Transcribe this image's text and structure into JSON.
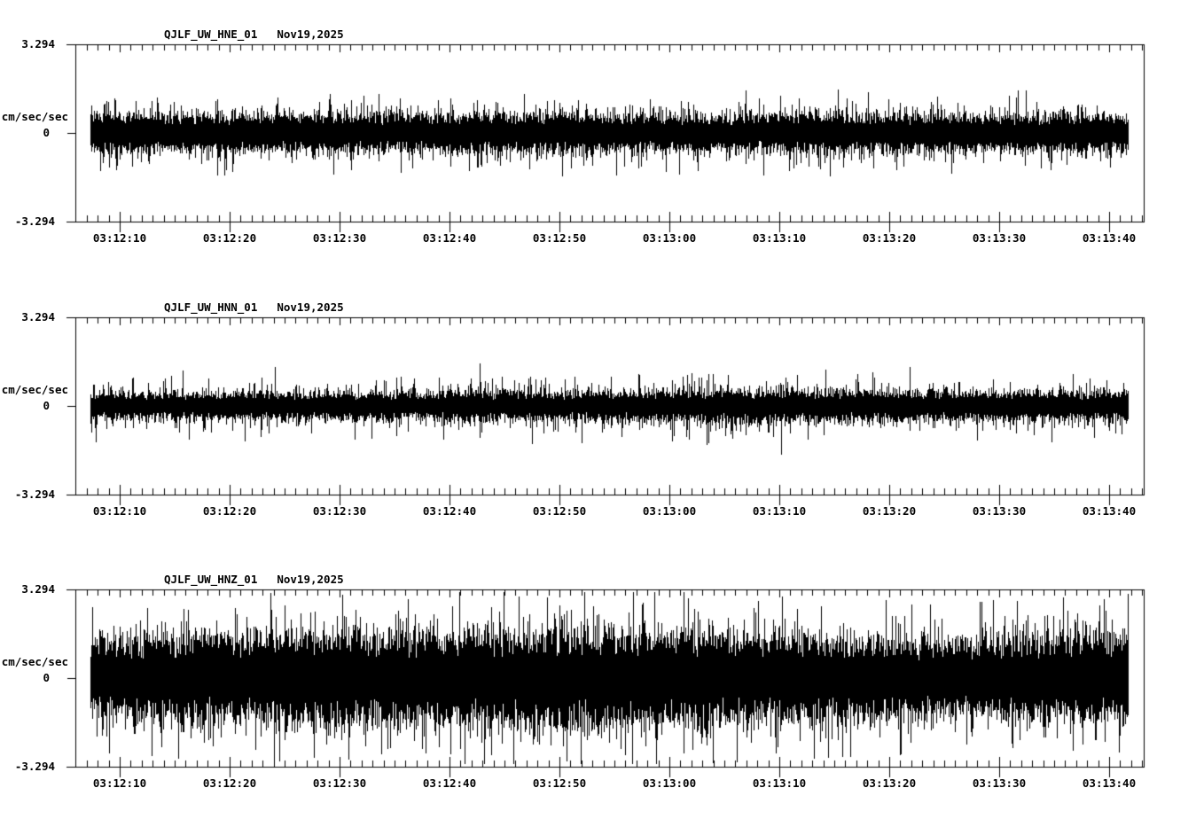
{
  "page": {
    "background_color": "#ffffff",
    "ink_color": "#000000"
  },
  "panels": [
    {
      "station": "QJLF_UW_HNE_01",
      "date": "Nov19,2025",
      "y_max_label": "3.294",
      "y_unit_label": "cm/sec/sec",
      "y_zero_label": "0",
      "y_min_label": "-3.294"
    },
    {
      "station": "QJLF_UW_HNN_01",
      "date": "Nov19,2025",
      "y_max_label": "3.294",
      "y_unit_label": "cm/sec/sec",
      "y_zero_label": "0",
      "y_min_label": "-3.294"
    },
    {
      "station": "QJLF_UW_HNZ_01",
      "date": "Nov19,2025",
      "y_max_label": "3.294",
      "y_unit_label": "cm/sec/sec",
      "y_zero_label": "0",
      "y_min_label": "-3.294"
    }
  ],
  "x_axis": {
    "tick_labels": [
      "03:12:10",
      "03:12:20",
      "03:12:30",
      "03:12:40",
      "03:12:50",
      "03:13:00",
      "03:13:10",
      "03:13:20",
      "03:13:30",
      "03:13:40"
    ]
  },
  "chart_data": {
    "type": "line",
    "subtype": "seismogram",
    "title_date": "Nov19,2025",
    "y_unit": "cm/sec/sec",
    "y_range": [
      -3.294,
      3.294
    ],
    "y_tick_labels": [
      "3.294",
      "0",
      "-3.294"
    ],
    "x_tick_labels": [
      "03:12:10",
      "03:12:20",
      "03:12:30",
      "03:12:40",
      "03:12:50",
      "03:13:00",
      "03:13:10",
      "03:13:20",
      "03:13:30",
      "03:13:40"
    ],
    "x_major_tick_interval_seconds": 10,
    "x_minor_tick_interval_seconds": 1,
    "grid": false,
    "legend": false,
    "traces": [
      {
        "channel": "QJLF_UW_HNE_01",
        "date": "Nov19,2025",
        "description": "continuous background noise, roughly uniform amplitude",
        "approx_core_band_fraction_of_fullscale": 0.12,
        "approx_peak_fraction_of_fullscale": 0.45,
        "approx_peak_value_cm_sec_sec": 1.5,
        "synth": {
          "seed": 20251119,
          "band": 0.17,
          "tail": 0.065,
          "peak": 0.48,
          "envelope": [
            1.0,
            0.97,
            1.03,
            0.98,
            1.0,
            1.04,
            0.97,
            1.0,
            1.02,
            0.97,
            1.0,
            1.0
          ]
        }
      },
      {
        "channel": "QJLF_UW_HNN_01",
        "date": "Nov19,2025",
        "description": "continuous background noise, slightly larger excursions near 03:13:05",
        "approx_core_band_fraction_of_fullscale": 0.1,
        "approx_peak_fraction_of_fullscale": 0.45,
        "approx_peak_value_cm_sec_sec": 1.5,
        "synth": {
          "seed": 77031,
          "band": 0.13,
          "tail": 0.055,
          "peak": 0.48,
          "envelope": [
            0.85,
            0.9,
            0.95,
            0.92,
            1.0,
            0.98,
            1.05,
            1.18,
            1.08,
            1.0,
            0.97,
            1.02
          ]
        }
      },
      {
        "channel": "QJLF_UW_HNZ_01",
        "date": "Nov19,2025",
        "description": "high-amplitude continuous noise, largest spikes near 03:12:45-03:12:55, near full scale",
        "approx_core_band_fraction_of_fullscale": 0.3,
        "approx_peak_fraction_of_fullscale": 0.97,
        "approx_peak_value_cm_sec_sec": 3.2,
        "synth": {
          "seed": 424242,
          "band": 0.42,
          "tail": 0.13,
          "peak": 0.95,
          "envelope": [
            0.88,
            0.96,
            1.02,
            0.98,
            1.06,
            1.12,
            1.05,
            0.99,
            0.94,
            0.9,
            0.94,
            1.0
          ]
        }
      }
    ]
  }
}
